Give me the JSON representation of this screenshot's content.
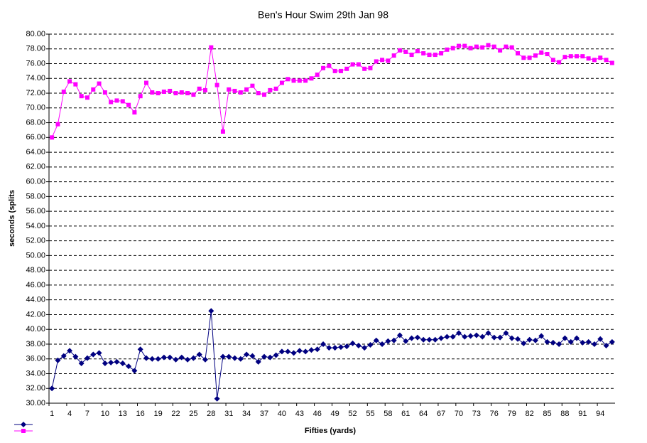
{
  "chart_data": {
    "type": "line",
    "title": "Ben's Hour Swim 29th Jan 98",
    "y_label": "seconds (splits",
    "x_label": "Fifties (yards)",
    "categories": [
      "1",
      null,
      null,
      "4",
      null,
      null,
      "7",
      null,
      null,
      "10",
      null,
      null,
      "13",
      null,
      null,
      "16",
      null,
      null,
      "19",
      null,
      null,
      "22",
      null,
      null,
      "25",
      null,
      null,
      "28",
      null,
      null,
      "31",
      null,
      null,
      "34",
      null,
      null,
      "37",
      null,
      null,
      "40",
      null,
      null,
      "43",
      null,
      null,
      "46",
      null,
      null,
      "49",
      null,
      null,
      "52",
      null,
      null,
      "55",
      null,
      null,
      "58",
      null,
      null,
      "61",
      null,
      null,
      "64",
      null,
      null,
      "67",
      null,
      null,
      "70",
      null,
      null,
      "73",
      null,
      null,
      "76",
      null,
      null,
      "79",
      null,
      null,
      "82",
      null,
      null,
      "85",
      null,
      null,
      "88",
      null,
      null,
      "91",
      null,
      null,
      "94",
      null,
      null
    ],
    "series": [
      {
        "color": "#000080",
        "marker": "diamond",
        "values": [
          32.0,
          35.8,
          36.4,
          37.1,
          36.3,
          35.4,
          36.1,
          36.6,
          36.8,
          35.4,
          35.5,
          35.6,
          35.4,
          35.0,
          34.4,
          37.3,
          36.1,
          36.0,
          36.0,
          36.2,
          36.2,
          35.9,
          36.2,
          35.9,
          36.1,
          36.6,
          35.9,
          42.5,
          30.6,
          36.3,
          36.3,
          36.1,
          36.0,
          36.6,
          36.4,
          35.6,
          36.3,
          36.2,
          36.5,
          37.0,
          37.0,
          36.8,
          37.1,
          37.0,
          37.2,
          37.3,
          38.0,
          37.5,
          37.5,
          37.6,
          37.7,
          38.1,
          37.8,
          37.5,
          37.9,
          38.5,
          38.0,
          38.4,
          38.5,
          39.2,
          38.4,
          38.8,
          38.9,
          38.6,
          38.6,
          38.6,
          38.8,
          39.0,
          39.0,
          39.5,
          39.0,
          39.1,
          39.2,
          39.0,
          39.5,
          38.9,
          38.9,
          39.5,
          38.8,
          38.7,
          38.1,
          38.6,
          38.5,
          39.1,
          38.3,
          38.2,
          38.0,
          38.8,
          38.3,
          38.8,
          38.2,
          38.3,
          38.0,
          38.7,
          37.8,
          38.3
        ]
      },
      {
        "color": "#ff00ff",
        "marker": "square",
        "values": [
          66.0,
          67.8,
          72.2,
          73.6,
          73.2,
          71.6,
          71.4,
          72.5,
          73.3,
          72.1,
          70.8,
          71.0,
          70.9,
          70.4,
          69.4,
          71.6,
          73.4,
          72.1,
          72.0,
          72.2,
          72.3,
          72.0,
          72.1,
          72.0,
          71.8,
          72.6,
          72.4,
          78.2,
          73.1,
          66.8,
          72.5,
          72.3,
          72.1,
          72.5,
          73.0,
          72.0,
          71.8,
          72.4,
          72.6,
          73.4,
          73.9,
          73.7,
          73.7,
          73.7,
          74.0,
          74.5,
          75.4,
          75.7,
          75.0,
          75.0,
          75.3,
          75.9,
          75.9,
          75.3,
          75.4,
          76.3,
          76.5,
          76.4,
          77.1,
          77.8,
          77.6,
          77.2,
          77.7,
          77.4,
          77.2,
          77.2,
          77.4,
          77.9,
          78.1,
          78.4,
          78.4,
          78.1,
          78.3,
          78.2,
          78.5,
          78.3,
          77.8,
          78.3,
          78.2,
          77.4,
          76.8,
          76.8,
          77.1,
          77.5,
          77.3,
          76.5,
          76.2,
          76.9,
          77.0,
          77.0,
          77.0,
          76.7,
          76.5,
          76.8,
          76.5,
          76.1
        ]
      }
    ],
    "ylim": [
      30,
      80
    ],
    "yticks": [
      {
        "value": 30,
        "label": "30.00"
      },
      {
        "value": 32,
        "label": "32.00"
      },
      {
        "value": 34,
        "label": "34.00"
      },
      {
        "value": 36,
        "label": "36.00"
      },
      {
        "value": 38,
        "label": "38.00"
      },
      {
        "value": 40,
        "label": "40.00"
      },
      {
        "value": 42,
        "label": "42.00"
      },
      {
        "value": 44,
        "label": "44.00"
      },
      {
        "value": 46,
        "label": "46.00"
      },
      {
        "value": 48,
        "label": "48.00"
      },
      {
        "value": 50,
        "label": "50.00"
      },
      {
        "value": 52,
        "label": "52.00"
      },
      {
        "value": 54,
        "label": "54.00"
      },
      {
        "value": 56,
        "label": "56.00"
      },
      {
        "value": 58,
        "label": "58.00"
      },
      {
        "value": 60,
        "label": "60.00"
      },
      {
        "value": 62,
        "label": "62.00"
      },
      {
        "value": 64,
        "label": "64.00"
      },
      {
        "value": 66,
        "label": "66.00"
      },
      {
        "value": 68,
        "label": "68.00"
      },
      {
        "value": 70,
        "label": "70.00"
      },
      {
        "value": 72,
        "label": "72.00"
      },
      {
        "value": 74,
        "label": "74.00"
      },
      {
        "value": 76,
        "label": "76.00"
      },
      {
        "value": 78,
        "label": "78.00"
      },
      {
        "value": 80,
        "label": "80.00"
      }
    ],
    "grid": true
  }
}
